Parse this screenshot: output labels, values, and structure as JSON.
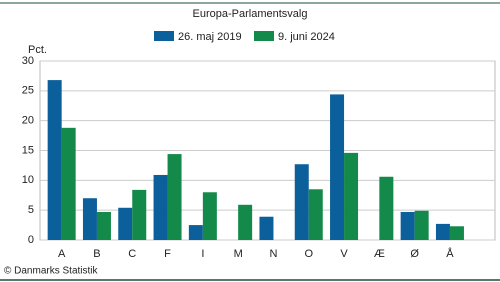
{
  "chart_data": {
    "type": "bar",
    "title": "Europa-Parlamentsvalg",
    "y_label": "Pct.",
    "source": "© Danmarks Statistik",
    "categories": [
      "A",
      "B",
      "C",
      "F",
      "I",
      "M",
      "N",
      "O",
      "V",
      "Æ",
      "Ø",
      "Å"
    ],
    "series": [
      {
        "name": "26. maj 2019",
        "color": "#0b5f9a",
        "values": [
          26.8,
          7.0,
          5.4,
          10.9,
          2.5,
          null,
          3.9,
          12.7,
          24.4,
          null,
          4.7,
          2.7
        ]
      },
      {
        "name": "9. juni 2024",
        "color": "#13894a",
        "values": [
          18.8,
          4.7,
          8.4,
          14.4,
          8.0,
          5.9,
          null,
          8.5,
          14.6,
          10.6,
          4.9,
          2.3
        ]
      }
    ],
    "ylim": [
      0,
      30
    ],
    "yticks": [
      0,
      5,
      10,
      15,
      20,
      25,
      30
    ],
    "grid": true
  }
}
